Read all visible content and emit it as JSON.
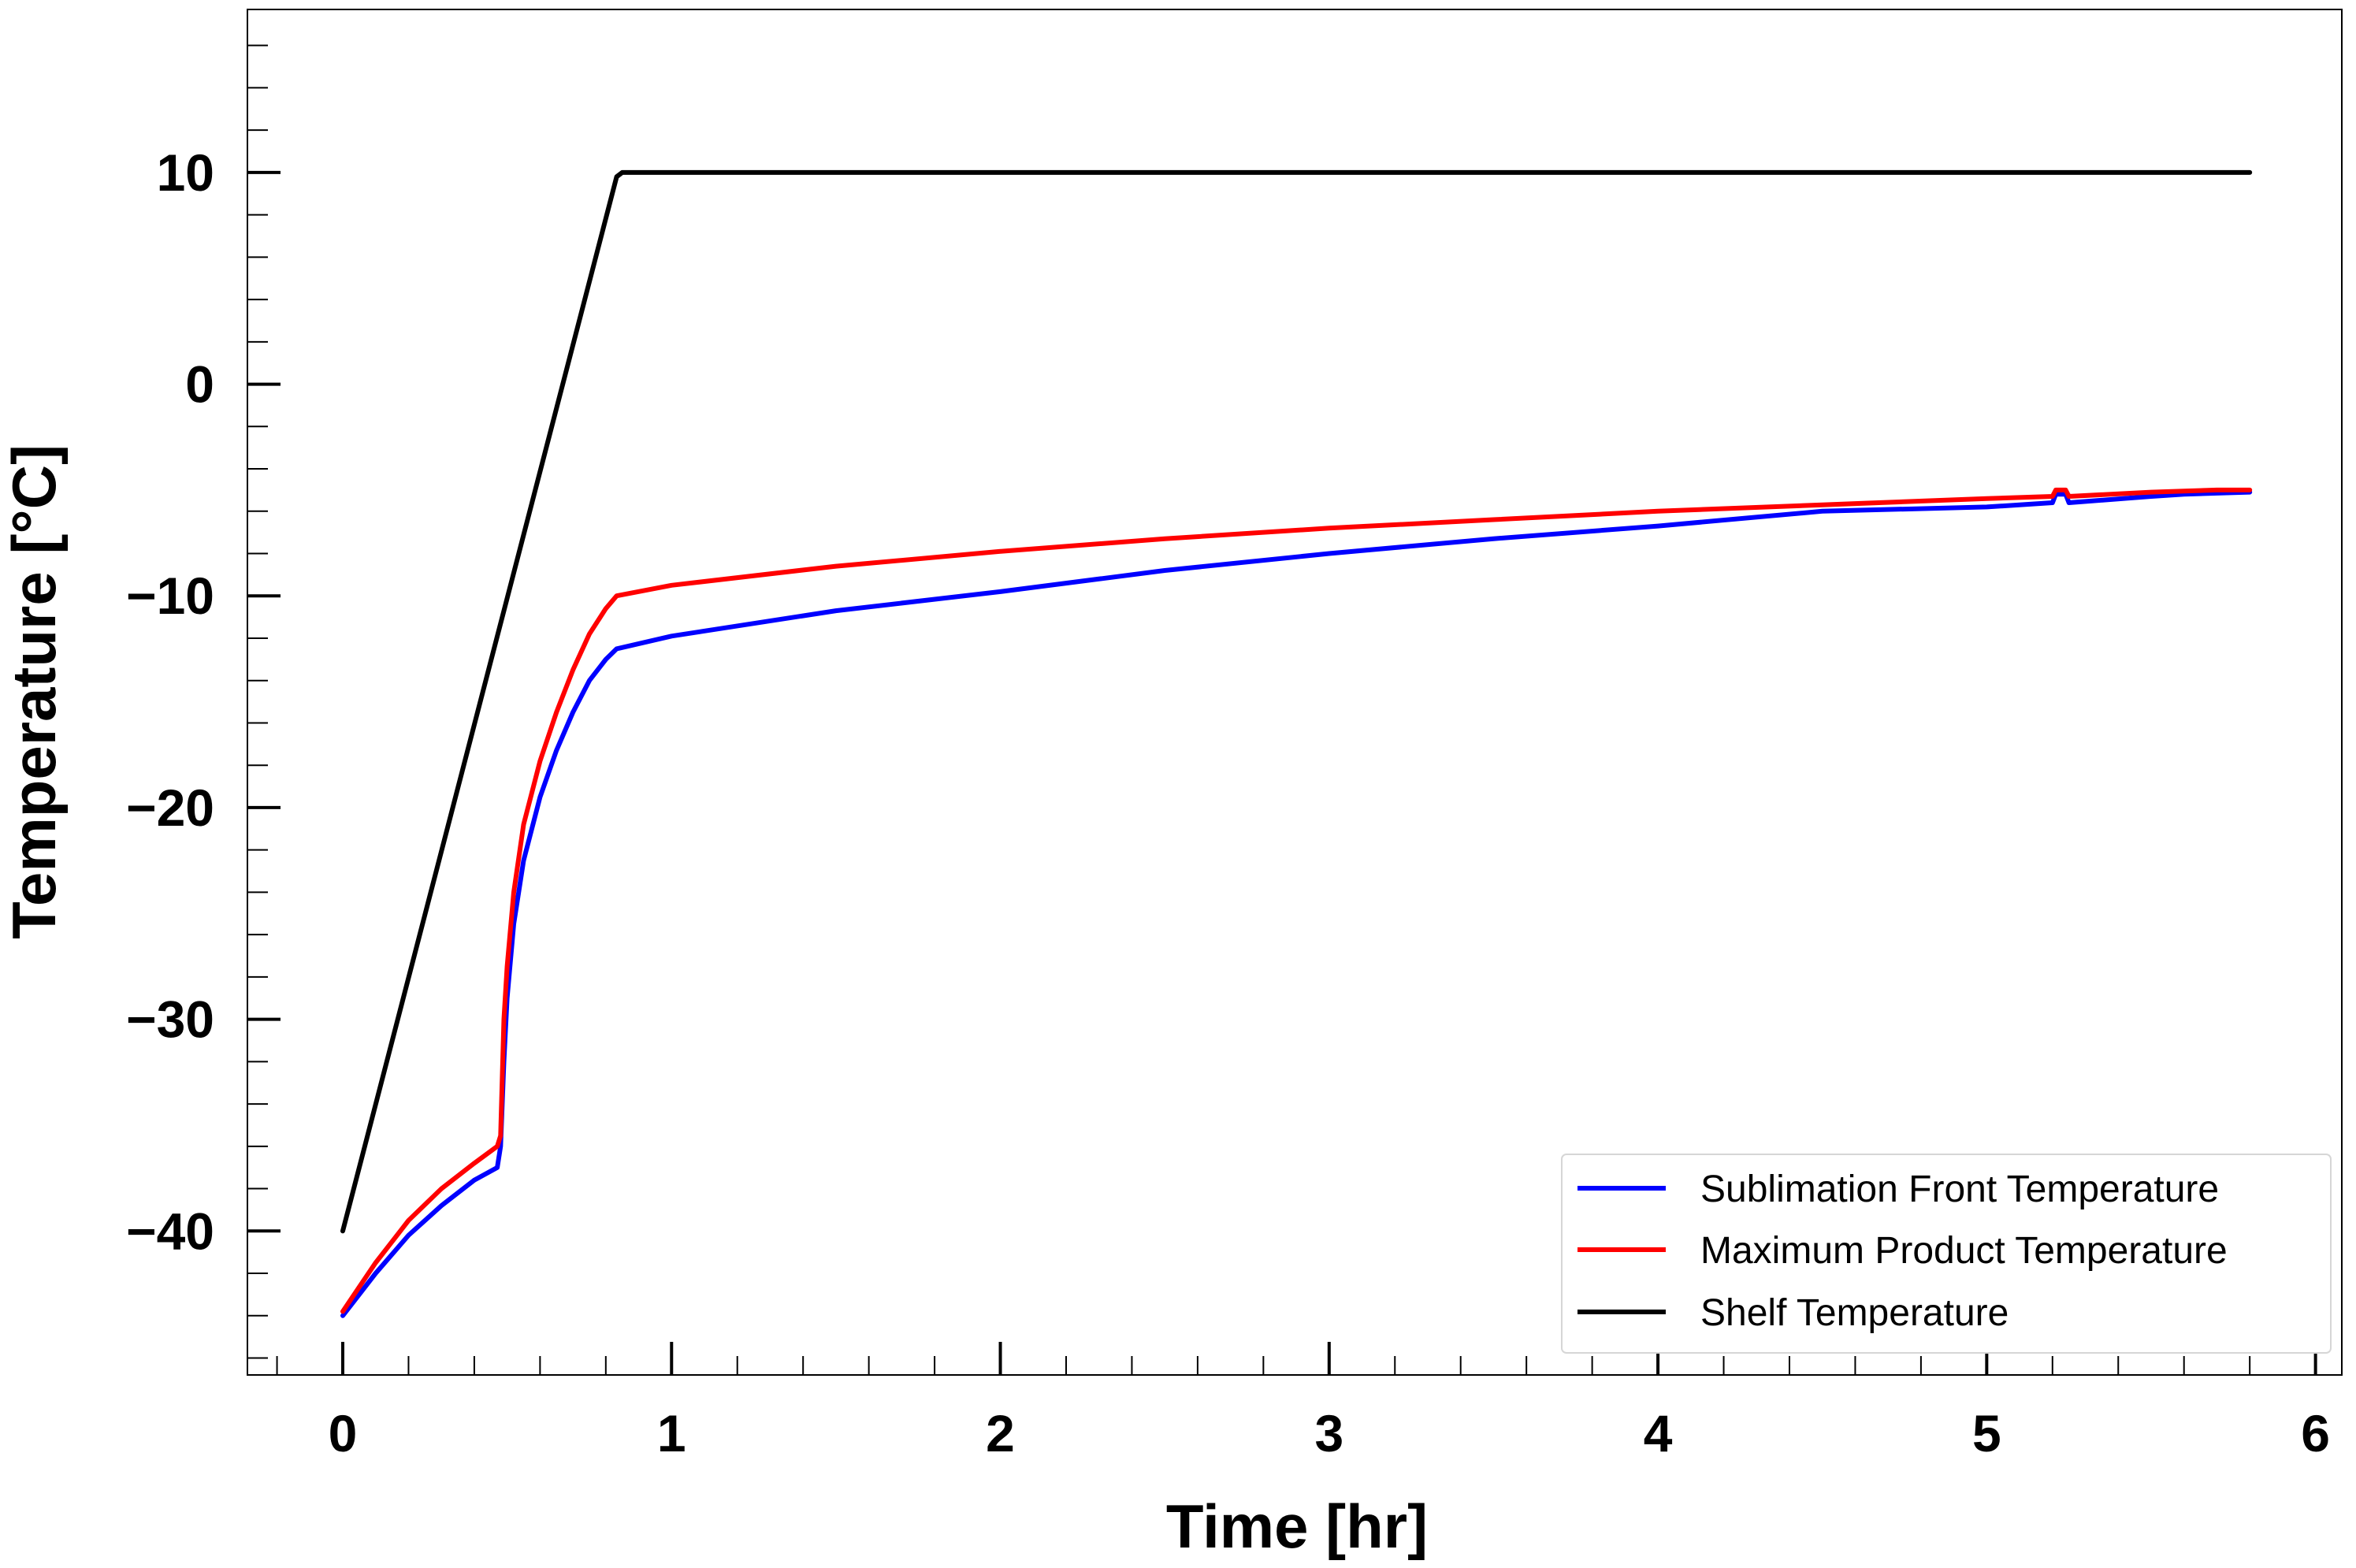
{
  "chart_data": {
    "type": "line",
    "title": "",
    "xlabel": "Time [hr]",
    "ylabel": "Temperature [°C]",
    "xlim": [
      -0.29,
      6.08
    ],
    "ylim": [
      -46.8,
      17.7
    ],
    "xticks": [
      0,
      1,
      2,
      3,
      4,
      5,
      6
    ],
    "xtick_labels": [
      "0",
      "1",
      "2",
      "3",
      "4",
      "5",
      "6"
    ],
    "xminor_step": 0.2,
    "yticks": [
      -40,
      -30,
      -20,
      -10,
      0,
      10
    ],
    "ytick_labels": [
      "−40",
      "−30",
      "−20",
      "−10",
      "0",
      "10"
    ],
    "yminor_step": 2,
    "grid": false,
    "legend_position": "lower right",
    "series": [
      {
        "name": "Sublimation Front Temperature",
        "color": "#0000ff",
        "x": [
          0,
          0.1,
          0.2,
          0.3,
          0.4,
          0.47,
          0.48,
          0.49,
          0.5,
          0.52,
          0.55,
          0.6,
          0.65,
          0.7,
          0.75,
          0.8,
          0.833,
          1.0,
          1.5,
          2.0,
          2.5,
          3.0,
          3.5,
          4.0,
          4.5,
          5.0,
          5.2,
          5.21,
          5.24,
          5.25,
          5.5,
          5.6,
          5.7,
          5.8
        ],
        "y": [
          -44.0,
          -42.0,
          -40.2,
          -38.8,
          -37.6,
          -37.0,
          -36.0,
          -32.0,
          -29.0,
          -25.5,
          -22.5,
          -19.5,
          -17.3,
          -15.5,
          -14.0,
          -13.0,
          -12.5,
          -11.9,
          -10.7,
          -9.8,
          -8.8,
          -8.0,
          -7.3,
          -6.7,
          -6.0,
          -5.8,
          -5.6,
          -5.2,
          -5.2,
          -5.6,
          -5.3,
          -5.2,
          -5.15,
          -5.1
        ]
      },
      {
        "name": "Maximum Product Temperature",
        "color": "#ff0000",
        "x": [
          0,
          0.1,
          0.2,
          0.3,
          0.4,
          0.47,
          0.48,
          0.49,
          0.5,
          0.52,
          0.55,
          0.6,
          0.65,
          0.7,
          0.75,
          0.8,
          0.833,
          1.0,
          1.5,
          2.0,
          2.5,
          3.0,
          3.5,
          4.0,
          4.5,
          5.0,
          5.2,
          5.21,
          5.24,
          5.25,
          5.5,
          5.6,
          5.7,
          5.8
        ],
        "y": [
          -43.8,
          -41.5,
          -39.5,
          -38.0,
          -36.8,
          -36.0,
          -35.5,
          -30.0,
          -27.5,
          -24.0,
          -20.8,
          -17.8,
          -15.5,
          -13.5,
          -11.8,
          -10.6,
          -10.0,
          -9.5,
          -8.6,
          -7.9,
          -7.3,
          -6.8,
          -6.4,
          -6.0,
          -5.7,
          -5.4,
          -5.3,
          -5.0,
          -5.0,
          -5.3,
          -5.1,
          -5.05,
          -5.0,
          -5.0
        ]
      },
      {
        "name": "Shelf Temperature",
        "color": "#000000",
        "x": [
          0,
          0.833,
          0.85,
          5.8
        ],
        "y": [
          -40.0,
          9.8,
          10.0,
          10.0
        ]
      }
    ]
  }
}
